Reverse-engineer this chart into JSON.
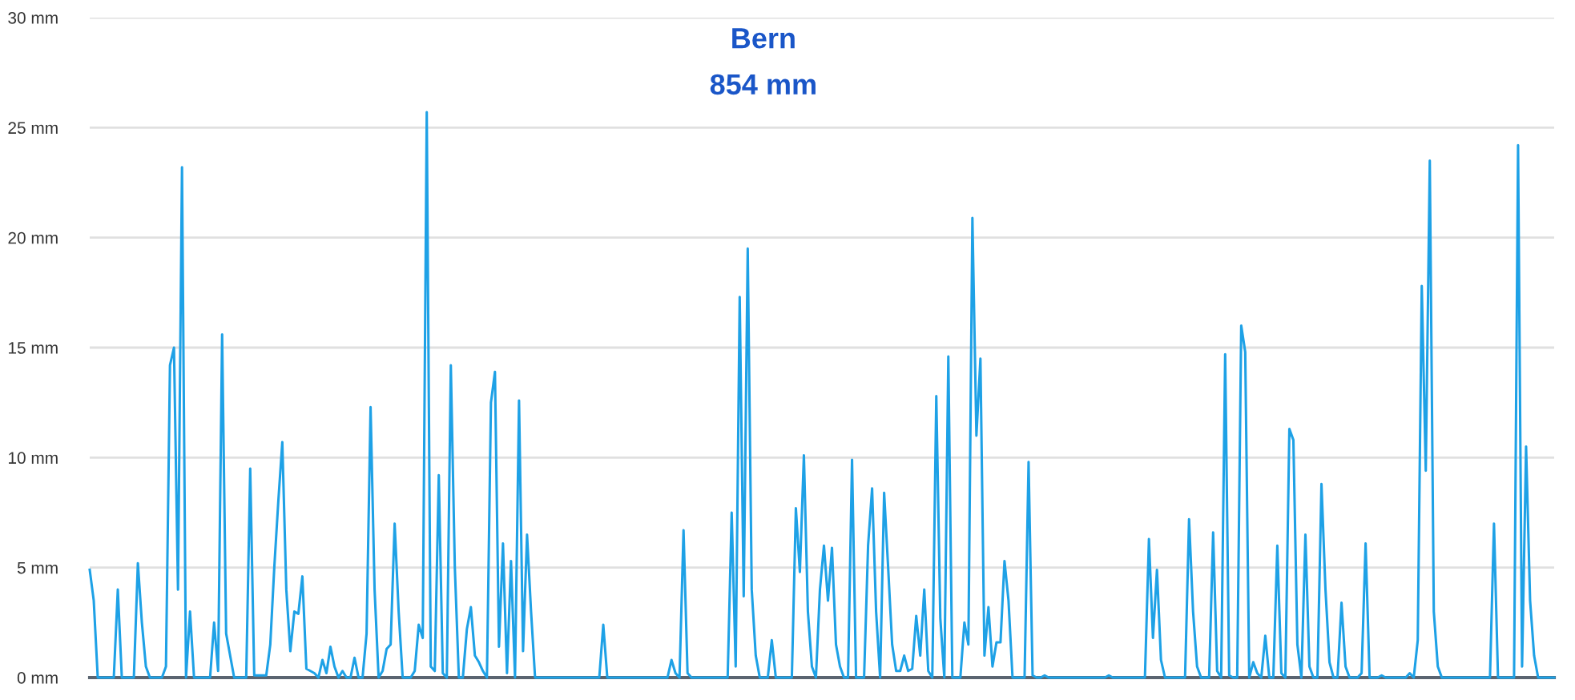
{
  "chart_data": {
    "type": "line",
    "title": "Bern",
    "subtitle": "854 mm",
    "categories": [
      null,
      null,
      null,
      null,
      null,
      null,
      null,
      null,
      null,
      null,
      null,
      null,
      null,
      null,
      null,
      null,
      null,
      null,
      null,
      null,
      null,
      null,
      null,
      null,
      null,
      null,
      null,
      null,
      null,
      null,
      null,
      null,
      null,
      null,
      null,
      null,
      null,
      null,
      null,
      null,
      null,
      null,
      null,
      null,
      null,
      null,
      null,
      null,
      null,
      null,
      null,
      null,
      null,
      null,
      null,
      null,
      null,
      null,
      null,
      null,
      null,
      null,
      null,
      null,
      null,
      null,
      null,
      null,
      null,
      null,
      null,
      null,
      null,
      null,
      null,
      null,
      null,
      null,
      null,
      null,
      null,
      null,
      null,
      null,
      null,
      null,
      null,
      null,
      null,
      null,
      null,
      null,
      null,
      null,
      null,
      null,
      null,
      null,
      null,
      null,
      null,
      null,
      null,
      null,
      null,
      null,
      null,
      null,
      null,
      null,
      null,
      null,
      null,
      null,
      null,
      null,
      null,
      null,
      null,
      null,
      null,
      null,
      null,
      null,
      null,
      null,
      null,
      null,
      null,
      null,
      null,
      null,
      null,
      null,
      null,
      null,
      null,
      null,
      null,
      null,
      null,
      null,
      null,
      null,
      null,
      null,
      null,
      null,
      null,
      null,
      null,
      null,
      null,
      null,
      null,
      null,
      null,
      null,
      null,
      null,
      null,
      null,
      null,
      null,
      null,
      null,
      null,
      null,
      null,
      null,
      null,
      null,
      null,
      null,
      null,
      null,
      null,
      null,
      null,
      null,
      null,
      null,
      null,
      null,
      null,
      null,
      null,
      null,
      null,
      null,
      null,
      null,
      null,
      null,
      null,
      null,
      null,
      null,
      null,
      null,
      null,
      null,
      null,
      null,
      null,
      null,
      null,
      null,
      null,
      null,
      null,
      null,
      null,
      null,
      null,
      null,
      null,
      null,
      null,
      null,
      null,
      null,
      null,
      null,
      null,
      null,
      null,
      null,
      null,
      null,
      null,
      null,
      null,
      null,
      null,
      null,
      null,
      null,
      null,
      null,
      null,
      null,
      null,
      null,
      null,
      null,
      null,
      null,
      null,
      null,
      null,
      null,
      null,
      null,
      null,
      null,
      null,
      null,
      null,
      null,
      null,
      null,
      null,
      null,
      null,
      null,
      null,
      null,
      null,
      null,
      null,
      null,
      null,
      null,
      null,
      null,
      null,
      null,
      null,
      null,
      null,
      null,
      null,
      null,
      null,
      null,
      null,
      null,
      null,
      null,
      null,
      null,
      null,
      null,
      null,
      null,
      null,
      null,
      null,
      null,
      null,
      null,
      null,
      null,
      null,
      null,
      null,
      null,
      null,
      null,
      null,
      null,
      null,
      null,
      null,
      null,
      null,
      null,
      null,
      null,
      null,
      null,
      null,
      null,
      null,
      null,
      null,
      null,
      null,
      null,
      null,
      null,
      null,
      null,
      null,
      null,
      null,
      null,
      null,
      null,
      null,
      null,
      null,
      null,
      null,
      null,
      null,
      null,
      null,
      null,
      null,
      null,
      null,
      null,
      null,
      null,
      null,
      null,
      null,
      null,
      null,
      null,
      null,
      null,
      null,
      null
    ],
    "series": [
      {
        "color": "#1ea1e6",
        "values": [
          4.9,
          3.5,
          0,
          0,
          0,
          0,
          0,
          4.0,
          0,
          0,
          0,
          0,
          5.2,
          2.5,
          0.5,
          0,
          0,
          0,
          0,
          0.5,
          14.2,
          15,
          4,
          23.2,
          0,
          3,
          0,
          0,
          0,
          0,
          0,
          2.5,
          0.3,
          15.6,
          2,
          1,
          0,
          0,
          0,
          0,
          9.5,
          0.1,
          0.1,
          0.1,
          0.1,
          1.5,
          5,
          8,
          10.7,
          4,
          1.2,
          3,
          2.9,
          4.6,
          0.4,
          0.3,
          0.2,
          0,
          0.8,
          0.2,
          1.4,
          0.5,
          0,
          0.3,
          0,
          0,
          0.9,
          0,
          0,
          2,
          12.3,
          4,
          0,
          0.3,
          1.3,
          1.5,
          7,
          3,
          0,
          0,
          0,
          0.3,
          2.4,
          1.8,
          25.7,
          0.5,
          0.3,
          9.2,
          0.2,
          0,
          14.2,
          5,
          0,
          0,
          2.2,
          3.2,
          1,
          0.7,
          0.3,
          0,
          12.5,
          13.9,
          1.4,
          6.1,
          0.2,
          5.3,
          0,
          12.6,
          1.2,
          6.5,
          3,
          0,
          0,
          0,
          0,
          0,
          0,
          0,
          0,
          0,
          0,
          0,
          0,
          0,
          0,
          0,
          0,
          0,
          2.4,
          0,
          0,
          0,
          0,
          0,
          0,
          0,
          0,
          0,
          0,
          0,
          0,
          0,
          0,
          0,
          0,
          0.8,
          0.2,
          0,
          6.7,
          0.2,
          0,
          0,
          0,
          0,
          0,
          0,
          0,
          0,
          0,
          0,
          7.5,
          0.5,
          17.3,
          3.7,
          19.5,
          4,
          1,
          0,
          0,
          0,
          1.7,
          0,
          0,
          0,
          0,
          0,
          7.7,
          4.8,
          10.1,
          3,
          0.5,
          0,
          4,
          6,
          3.5,
          5.9,
          1.5,
          0.5,
          0,
          0,
          9.9,
          0,
          0,
          0,
          6,
          8.6,
          3,
          0,
          8.4,
          5,
          1.5,
          0.3,
          0.3,
          1,
          0.3,
          0.4,
          2.8,
          1,
          4,
          0.3,
          0,
          12.8,
          2.7,
          0,
          14.6,
          0,
          0,
          0,
          2.5,
          1.5,
          20.9,
          11,
          14.5,
          1,
          3.2,
          0.5,
          1.6,
          1.6,
          5.3,
          3.5,
          0,
          0,
          0,
          0,
          9.8,
          0.1,
          0,
          0,
          0.1,
          0,
          0,
          0,
          0,
          0,
          0,
          0,
          0,
          0,
          0,
          0,
          0,
          0,
          0,
          0,
          0.1,
          0,
          0,
          0,
          0,
          0,
          0,
          0,
          0,
          0,
          6.3,
          1.8,
          4.9,
          0.8,
          0,
          0,
          0,
          0,
          0,
          0,
          7.2,
          3,
          0.5,
          0,
          0,
          0,
          6.6,
          0.3,
          0,
          14.7,
          0.1,
          0,
          0,
          16,
          14.8,
          0,
          0.7,
          0.2,
          0,
          1.9,
          0,
          0,
          6,
          0.2,
          0,
          11.3,
          10.8,
          1.5,
          0,
          6.5,
          0.5,
          0,
          0,
          8.8,
          4,
          0.7,
          0,
          0,
          3.4,
          0.5,
          0,
          0,
          0,
          0.2,
          6.1,
          0,
          0,
          0,
          0.1,
          0,
          0,
          0,
          0,
          0,
          0,
          0.2,
          0,
          1.7,
          17.8,
          9.4,
          23.5,
          3,
          0.5,
          0,
          0,
          0,
          0,
          0,
          0,
          0,
          0,
          0,
          0,
          0,
          0,
          0,
          7,
          0,
          0,
          0,
          0,
          0,
          24.2,
          0.5,
          10.5,
          3.5,
          1,
          0,
          0,
          0,
          0,
          0
        ]
      }
    ],
    "ylim": [
      0,
      30
    ],
    "yticks": [
      {
        "value": 0,
        "label": "0 mm"
      },
      {
        "value": 5,
        "label": "5 mm"
      },
      {
        "value": 10,
        "label": "10 mm"
      },
      {
        "value": 15,
        "label": "15 mm"
      },
      {
        "value": 20,
        "label": "20 mm"
      },
      {
        "value": 25,
        "label": "25 mm"
      },
      {
        "value": 30,
        "label": "30 mm"
      }
    ],
    "grid": "y",
    "marker": "none",
    "line_style": "solid"
  }
}
